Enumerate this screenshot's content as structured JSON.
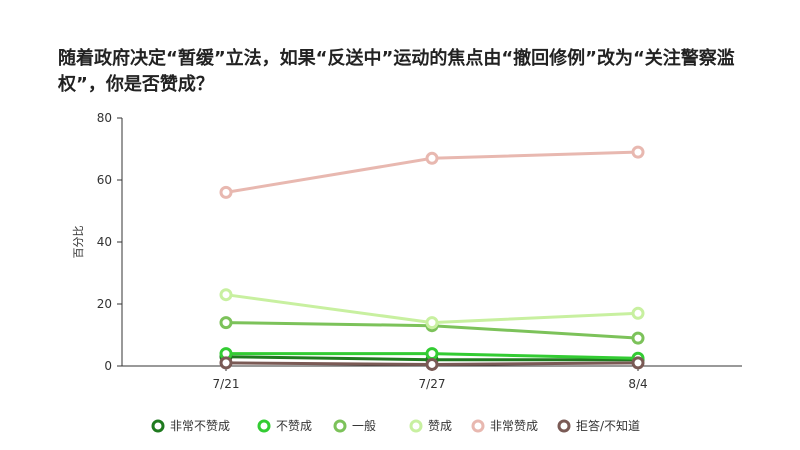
{
  "chart_data": {
    "type": "line",
    "title": "随着政府决定“暂缓”立法，如果“反送中”运动的焦点由“撤回修例”改为“关注警察滥权”，你是否赞成？",
    "ylabel": "百分比",
    "xlabel": "",
    "categories": [
      "7/21",
      "7/27",
      "8/4"
    ],
    "ylim": [
      0,
      80
    ],
    "yticks": [
      0,
      20,
      40,
      60,
      80
    ],
    "grid": false,
    "legend_position": "bottom",
    "series": [
      {
        "name": "非常不赞成",
        "color": "#1f7a1f",
        "values": [
          3,
          2,
          2
        ]
      },
      {
        "name": "不赞成",
        "color": "#33cc33",
        "values": [
          4,
          4,
          2.5
        ]
      },
      {
        "name": "一般",
        "color": "#7cc25a",
        "values": [
          14,
          13,
          9
        ]
      },
      {
        "name": "赞成",
        "color": "#c8f0a0",
        "values": [
          23,
          14,
          17
        ]
      },
      {
        "name": "非常赞成",
        "color": "#e8b8b0",
        "values": [
          56,
          67,
          69
        ]
      },
      {
        "name": "拒答/不知道",
        "color": "#7a5a55",
        "values": [
          1,
          0.5,
          1
        ]
      }
    ]
  }
}
